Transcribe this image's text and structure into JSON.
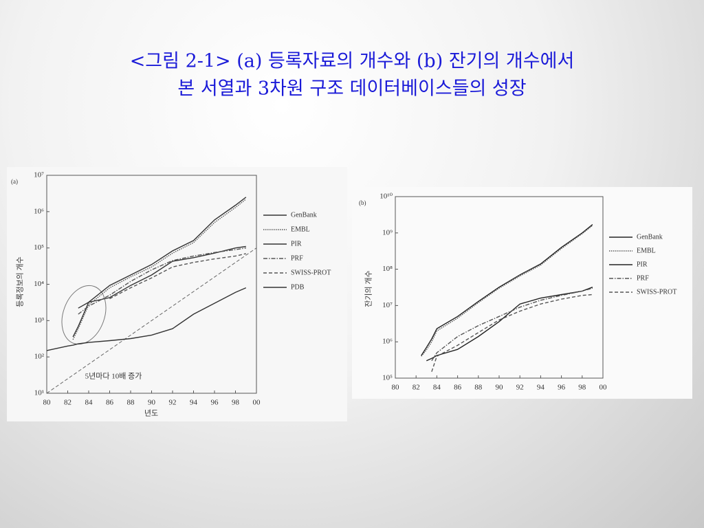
{
  "slide_title": [
    "<그림 2-1> (a) 등록자료의 개수와 (b) 잔기의 개수에서",
    "본 서열과 3차원 구조 데이터베이스들의 성장"
  ],
  "chart_data": [
    {
      "type": "line",
      "panel_label": "(a)",
      "x_label": "년도",
      "y_label": "등록정보의 개수",
      "log_y": true,
      "x": [
        80,
        82,
        82.5,
        83,
        84,
        86,
        88,
        90,
        92,
        94,
        96,
        98,
        99
      ],
      "series": [
        {
          "name": "GenBank",
          "color": "#333333",
          "style": "solid",
          "values": [
            null,
            null,
            355,
            690,
            3200,
            9300,
            18000,
            35000,
            83000,
            160000,
            590000,
            1500000,
            2500000
          ]
        },
        {
          "name": "EMBL",
          "color": "#555555",
          "style": "dotted",
          "values": [
            null,
            null,
            300,
            600,
            2700,
            8000,
            16000,
            30000,
            72000,
            140000,
            500000,
            1300000,
            2200000
          ]
        },
        {
          "name": "PIR",
          "color": "#333333",
          "style": "solid",
          "values": [
            null,
            null,
            null,
            2200,
            3200,
            4300,
            9300,
            18000,
            43000,
            54000,
            72000,
            100000,
            110000
          ]
        },
        {
          "name": "PRF",
          "color": "#555555",
          "style": "dashdot",
          "values": [
            null,
            null,
            null,
            1500,
            2500,
            5000,
            12000,
            25000,
            45000,
            60000,
            75000,
            90000,
            100000
          ]
        },
        {
          "name": "SWISS-PROT",
          "color": "#555555",
          "style": "dashed",
          "values": [
            null,
            null,
            null,
            null,
            null,
            4000,
            8000,
            15000,
            30000,
            40000,
            50000,
            60000,
            70000
          ]
        },
        {
          "name": "PDB",
          "color": "#333333",
          "style": "solid",
          "values": [
            150,
            200,
            210,
            230,
            250,
            280,
            320,
            400,
            600,
            1500,
            3000,
            6000,
            8000
          ]
        }
      ],
      "reference_line": {
        "label": "5년마다 10배 증가",
        "x": [
          80,
          100
        ],
        "values": [
          10,
          100000
        ],
        "style": "dashed"
      },
      "xlim": [
        80,
        100
      ],
      "xticks": [
        80,
        82,
        84,
        86,
        88,
        90,
        92,
        94,
        96,
        98,
        {
          "value": 100,
          "label": "00"
        }
      ],
      "ylim": [
        10,
        10000000
      ],
      "yticks": [
        {
          "value": 10,
          "label": "10¹"
        },
        {
          "value": 100,
          "label": "10²"
        },
        {
          "value": 1000,
          "label": "10³"
        },
        {
          "value": 10000,
          "label": "10⁴"
        },
        {
          "value": 100000,
          "label": "10⁵"
        },
        {
          "value": 1000000,
          "label": "10⁶"
        },
        {
          "value": 10000000,
          "label": "10⁷"
        }
      ]
    },
    {
      "type": "line",
      "panel_label": "(b)",
      "y_label": "잔기의 개수",
      "log_y": true,
      "x": [
        82.5,
        83,
        83.5,
        84,
        86,
        88,
        90,
        92,
        94,
        96,
        98,
        99
      ],
      "series": [
        {
          "name": "GenBank",
          "color": "#222222",
          "style": "solid",
          "values": [
            420000,
            700000,
            1200000,
            2300000,
            5000000,
            13000000,
            32000000,
            70000000,
            140000000,
            400000000,
            1000000000,
            1700000000
          ]
        },
        {
          "name": "EMBL",
          "color": "#555555",
          "style": "dotted",
          "values": [
            400000,
            600000,
            1000000,
            2000000,
            4500000,
            12000000,
            30000000,
            65000000,
            130000000,
            370000000,
            950000000,
            1600000000
          ]
        },
        {
          "name": "PIR",
          "color": "#222222",
          "style": "solid",
          "values": [
            null,
            300000,
            350000,
            420000,
            620000,
            1400000,
            3600000,
            11000000,
            16000000,
            20000000,
            25000000,
            32000000
          ]
        },
        {
          "name": "PRF",
          "color": "#555555",
          "style": "dashdot",
          "values": [
            null,
            null,
            300000,
            500000,
            1400000,
            2800000,
            5000000,
            9000000,
            14000000,
            19000000,
            25000000,
            30000000
          ]
        },
        {
          "name": "SWISS-PROT",
          "color": "#555555",
          "style": "dashed",
          "values": [
            null,
            null,
            150000,
            400000,
            800000,
            1800000,
            4000000,
            7000000,
            11000000,
            15000000,
            19000000,
            20000000
          ]
        }
      ],
      "xlim": [
        80,
        100
      ],
      "xticks": [
        80,
        82,
        84,
        86,
        88,
        90,
        92,
        94,
        96,
        98,
        {
          "value": 100,
          "label": "00"
        }
      ],
      "ylim": [
        100000,
        10000000000
      ],
      "yticks": [
        {
          "value": 100000,
          "label": "10⁵"
        },
        {
          "value": 1000000,
          "label": "10⁶"
        },
        {
          "value": 10000000,
          "label": "10⁷"
        },
        {
          "value": 100000000,
          "label": "10⁸"
        },
        {
          "value": 1000000000,
          "label": "10⁹"
        },
        {
          "value": 10000000000,
          "label": "10¹⁰"
        }
      ]
    }
  ]
}
